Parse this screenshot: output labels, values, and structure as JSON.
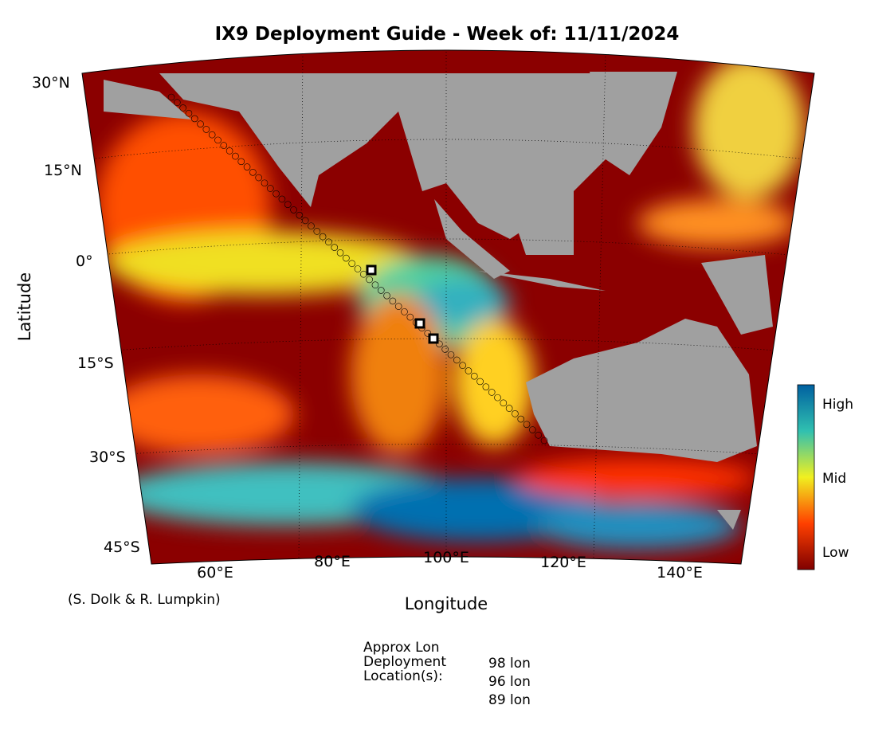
{
  "title": "IX9 Deployment Guide - Week of: 11/11/2024",
  "map": {
    "x_label": "Longitude",
    "y_label": "Latitude",
    "lat_ticks": [
      "30°N",
      "15°N",
      "0°",
      "15°S",
      "30°S",
      "45°S"
    ],
    "lon_ticks": [
      "60°E",
      "80°E",
      "100°E",
      "120°E",
      "140°E"
    ],
    "colorbar": [
      "High",
      "Mid",
      "Low"
    ]
  },
  "credit": "(S. Dolk & R. Lumpkin)",
  "deployment": {
    "heading": [
      "Approx Lon",
      "Deployment",
      "Location(s):"
    ],
    "locations": [
      "98 lon",
      "96 lon",
      "89 lon"
    ]
  }
}
